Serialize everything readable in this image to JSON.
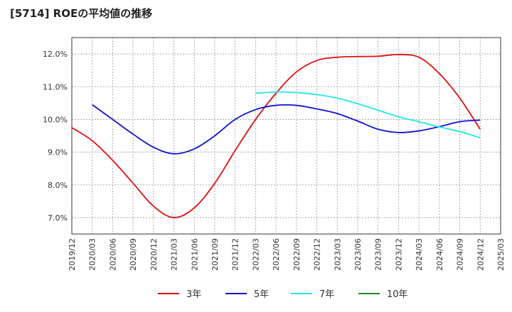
{
  "chart_data": {
    "type": "line",
    "title": "[5714]  ROEの平均値の推移",
    "xlabel": "",
    "ylabel": "",
    "ylim": [
      6.5,
      12.5
    ],
    "y_ticks": [
      7.0,
      8.0,
      9.0,
      10.0,
      11.0,
      12.0
    ],
    "y_tick_labels": [
      "7.0%",
      "8.0%",
      "9.0%",
      "10.0%",
      "11.0%",
      "12.0%"
    ],
    "x_ticks": [
      "2019/12",
      "2020/03",
      "2020/06",
      "2020/09",
      "2020/12",
      "2021/03",
      "2021/06",
      "2021/09",
      "2021/12",
      "2022/03",
      "2022/06",
      "2022/09",
      "2022/12",
      "2023/03",
      "2023/06",
      "2023/09",
      "2023/12",
      "2024/03",
      "2024/06",
      "2024/09",
      "2024/12",
      "2025/03"
    ],
    "grid": true,
    "legend_position": "bottom",
    "series": [
      {
        "name": "3年",
        "color": "#dd1111",
        "points": [
          [
            "2019/12",
            9.75
          ],
          [
            "2020/03",
            9.35
          ],
          [
            "2020/06",
            8.75
          ],
          [
            "2020/09",
            8.05
          ],
          [
            "2020/12",
            7.35
          ],
          [
            "2021/03",
            7.0
          ],
          [
            "2021/06",
            7.3
          ],
          [
            "2021/09",
            8.05
          ],
          [
            "2021/12",
            9.05
          ],
          [
            "2022/03",
            10.0
          ],
          [
            "2022/06",
            10.8
          ],
          [
            "2022/09",
            11.45
          ],
          [
            "2022/12",
            11.8
          ],
          [
            "2023/03",
            11.9
          ],
          [
            "2023/06",
            11.92
          ],
          [
            "2023/09",
            11.93
          ],
          [
            "2023/12",
            11.98
          ],
          [
            "2024/03",
            11.9
          ],
          [
            "2024/06",
            11.4
          ],
          [
            "2024/09",
            10.65
          ],
          [
            "2024/12",
            9.7
          ]
        ]
      },
      {
        "name": "5年",
        "color": "#1111cc",
        "points": [
          [
            "2020/03",
            10.45
          ],
          [
            "2020/06",
            10.0
          ],
          [
            "2020/09",
            9.55
          ],
          [
            "2020/12",
            9.15
          ],
          [
            "2021/03",
            8.95
          ],
          [
            "2021/06",
            9.1
          ],
          [
            "2021/09",
            9.5
          ],
          [
            "2021/12",
            10.0
          ],
          [
            "2022/03",
            10.3
          ],
          [
            "2022/06",
            10.43
          ],
          [
            "2022/09",
            10.43
          ],
          [
            "2022/12",
            10.32
          ],
          [
            "2023/03",
            10.18
          ],
          [
            "2023/06",
            9.95
          ],
          [
            "2023/09",
            9.7
          ],
          [
            "2023/12",
            9.6
          ],
          [
            "2024/03",
            9.65
          ],
          [
            "2024/06",
            9.78
          ],
          [
            "2024/09",
            9.93
          ],
          [
            "2024/12",
            9.98
          ]
        ]
      },
      {
        "name": "7年",
        "color": "#22e6e6",
        "points": [
          [
            "2022/03",
            10.8
          ],
          [
            "2022/06",
            10.84
          ],
          [
            "2022/09",
            10.82
          ],
          [
            "2022/12",
            10.76
          ],
          [
            "2023/03",
            10.65
          ],
          [
            "2023/06",
            10.48
          ],
          [
            "2023/09",
            10.28
          ],
          [
            "2023/12",
            10.08
          ],
          [
            "2024/03",
            9.93
          ],
          [
            "2024/06",
            9.77
          ],
          [
            "2024/09",
            9.63
          ],
          [
            "2024/12",
            9.44
          ]
        ]
      },
      {
        "name": "10年",
        "color": "#228822",
        "points": []
      }
    ]
  }
}
